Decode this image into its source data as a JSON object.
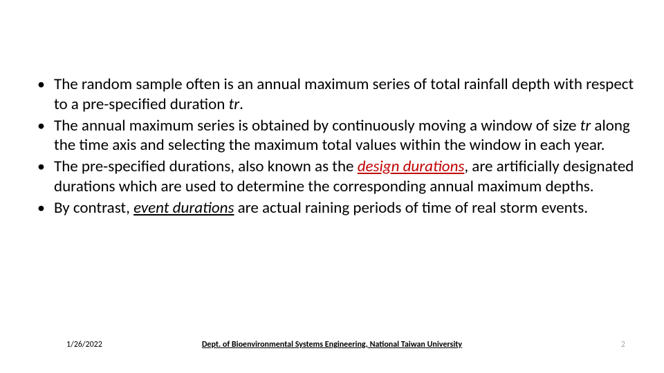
{
  "bullets": [
    {
      "pre": "The random sample often is an annual maximum series of total rainfall depth with respect to a pre-specified duration ",
      "tr": "tr",
      "post": "."
    },
    {
      "pre": "The annual maximum series is obtained by continuously moving a window of size ",
      "tr": "tr",
      "post": " along the time axis and selecting the maximum total values within the window in each year."
    },
    {
      "pre": "The pre-specified durations, also known as the ",
      "design": "design durations",
      "post": ", are artificially designated durations which are used to determine the corresponding annual maximum depths."
    },
    {
      "pre": "By contrast, ",
      "event": "event durations",
      "post": " are actual raining periods of time of real storm events."
    }
  ],
  "footer": {
    "date": "1/26/2022",
    "dept": "Dept. of Bioenvironmental Systems Engineering, National Taiwan University",
    "page": "2"
  },
  "colors": {
    "text": "#000000",
    "design": "#c00000",
    "pagenum": "#a6a6a6",
    "background": "#ffffff"
  },
  "typography": {
    "body_fontsize": 23,
    "footer_fontsize": 12,
    "font_family": "Calibri"
  }
}
